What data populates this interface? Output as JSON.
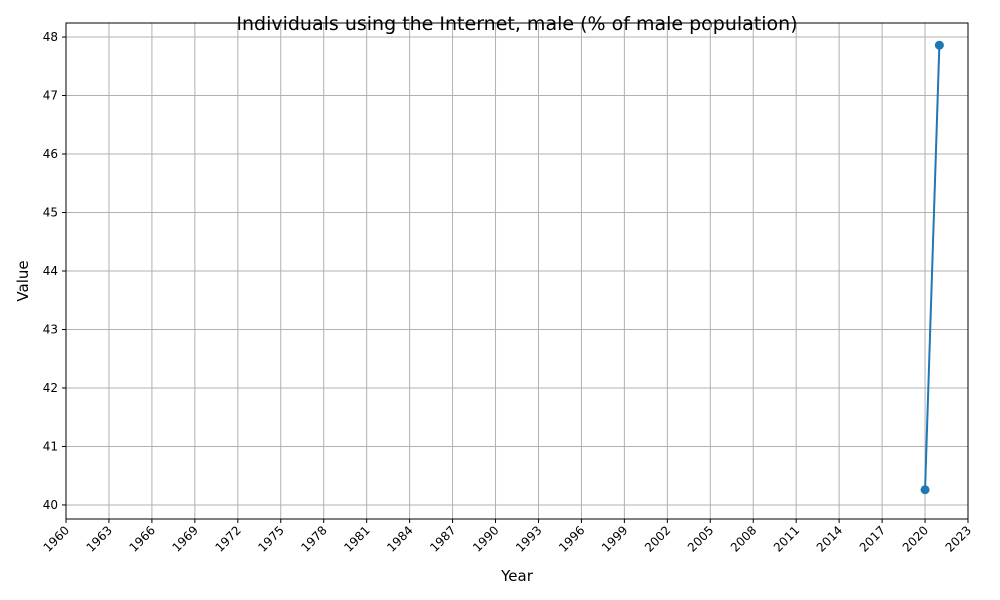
{
  "chart_data": {
    "type": "line",
    "title": "Individuals using the Internet, male (% of male population)",
    "xlabel": "Year",
    "ylabel": "Value",
    "xlim": [
      1960,
      2023
    ],
    "ylim": [
      40,
      48
    ],
    "x_ticks": [
      "1960",
      "1963",
      "1966",
      "1969",
      "1972",
      "1975",
      "1978",
      "1981",
      "1984",
      "1987",
      "1990",
      "1993",
      "1996",
      "1999",
      "2002",
      "2005",
      "2008",
      "2011",
      "2014",
      "2017",
      "2020",
      "2023"
    ],
    "y_ticks": [
      "40",
      "41",
      "42",
      "43",
      "44",
      "45",
      "46",
      "47",
      "48"
    ],
    "grid": true,
    "series": [
      {
        "color": "#1f77b4",
        "points": [
          {
            "x": 2020,
            "y": 40.26
          },
          {
            "x": 2021,
            "y": 47.86
          }
        ]
      }
    ]
  }
}
